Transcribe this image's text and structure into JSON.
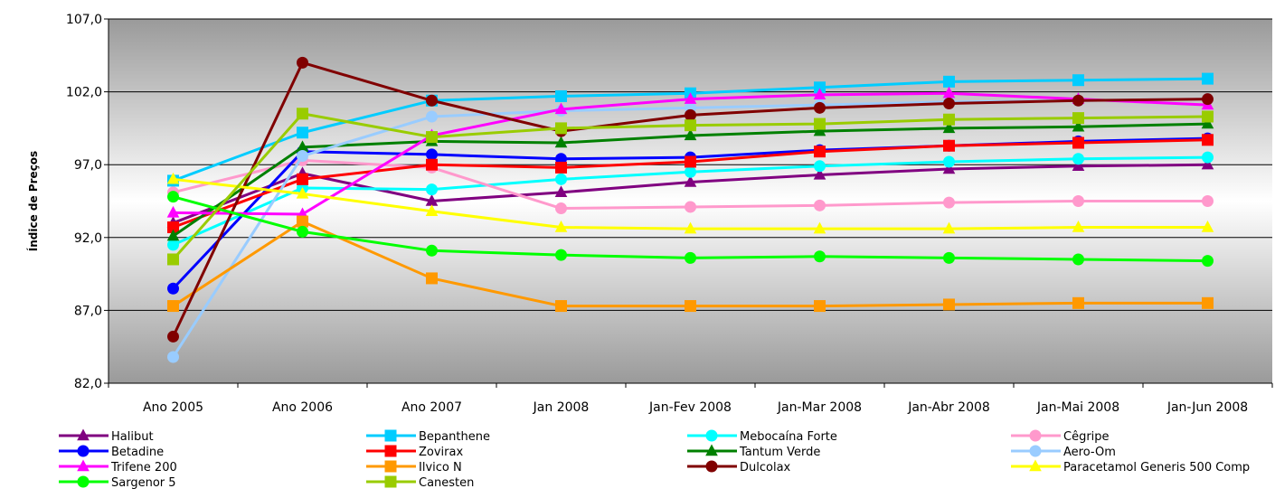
{
  "chart_data": {
    "type": "line",
    "title": "",
    "xlabel": "",
    "ylabel": "Índice de Preços",
    "ylim": [
      82.0,
      107.0
    ],
    "yticks": [
      "82,0",
      "87,0",
      "92,0",
      "97,0",
      "102,0",
      "107,0"
    ],
    "ytick_values": [
      82,
      87,
      92,
      97,
      102,
      107
    ],
    "grid": true,
    "legend_position": "bottom",
    "categories": [
      "Ano 2005",
      "Ano 2006",
      "Ano 2007",
      "Jan 2008",
      "Jan-Fev 2008",
      "Jan-Mar 2008",
      "Jan-Abr 2008",
      "Jan-Mai 2008",
      "Jan-Jun 2008"
    ],
    "series": [
      {
        "name": "Halibut",
        "color": "#800080",
        "marker": "triangle",
        "values": [
          93.0,
          96.4,
          94.5,
          95.1,
          95.8,
          96.3,
          96.7,
          96.9,
          97.0
        ]
      },
      {
        "name": "Bepanthene",
        "color": "#00CCFF",
        "marker": "square",
        "values": [
          95.9,
          99.2,
          101.4,
          101.7,
          101.9,
          102.3,
          102.7,
          102.8,
          102.9
        ]
      },
      {
        "name": "Mebocaína Forte",
        "color": "#00FFFF",
        "marker": "circle",
        "values": [
          91.5,
          95.4,
          95.3,
          96.0,
          96.5,
          96.9,
          97.2,
          97.4,
          97.5
        ]
      },
      {
        "name": "Cêgripe",
        "color": "#FF99CC",
        "marker": "circle",
        "values": [
          95.1,
          97.3,
          96.8,
          94.0,
          94.1,
          94.2,
          94.4,
          94.5,
          94.5
        ]
      },
      {
        "name": "Betadine",
        "color": "#0000FF",
        "marker": "circle",
        "values": [
          88.5,
          97.9,
          97.7,
          97.4,
          97.5,
          98.0,
          98.3,
          98.6,
          98.8
        ]
      },
      {
        "name": "Zovirax",
        "color": "#FF0000",
        "marker": "square",
        "values": [
          92.7,
          96.0,
          97.0,
          96.8,
          97.2,
          97.9,
          98.3,
          98.5,
          98.7
        ]
      },
      {
        "name": "Tantum Verde",
        "color": "#008000",
        "marker": "triangle",
        "values": [
          92.1,
          98.2,
          98.6,
          98.5,
          99.0,
          99.3,
          99.5,
          99.6,
          99.8
        ]
      },
      {
        "name": "Aero-Om",
        "color": "#99CCFF",
        "marker": "circle",
        "values": [
          83.8,
          97.6,
          100.3,
          100.7,
          100.9,
          101.1,
          101.3,
          101.4,
          101.5
        ]
      },
      {
        "name": "Trifene 200",
        "color": "#FF00FF",
        "marker": "triangle",
        "values": [
          93.7,
          93.6,
          99.0,
          100.8,
          101.5,
          101.8,
          101.9,
          101.5,
          101.1
        ]
      },
      {
        "name": "Ilvico N",
        "color": "#FF9900",
        "marker": "square",
        "values": [
          87.3,
          93.1,
          89.2,
          87.3,
          87.3,
          87.3,
          87.4,
          87.5,
          87.5
        ]
      },
      {
        "name": "Dulcolax",
        "color": "#800000",
        "marker": "circle",
        "values": [
          85.2,
          104.0,
          101.4,
          99.3,
          100.4,
          100.9,
          101.2,
          101.4,
          101.5
        ]
      },
      {
        "name": "Paracetamol Generis 500 Comp",
        "color": "#FFFF00",
        "marker": "triangle",
        "values": [
          96.0,
          95.0,
          93.8,
          92.7,
          92.6,
          92.6,
          92.6,
          92.7,
          92.7
        ]
      },
      {
        "name": "Sargenor 5",
        "color": "#00FF00",
        "marker": "circle",
        "values": [
          94.8,
          92.4,
          91.1,
          90.8,
          90.6,
          90.7,
          90.6,
          90.5,
          90.4
        ]
      },
      {
        "name": "Canesten",
        "color": "#99CC00",
        "marker": "square",
        "values": [
          90.5,
          100.5,
          98.9,
          99.5,
          99.7,
          99.8,
          100.1,
          100.2,
          100.3
        ]
      }
    ]
  }
}
